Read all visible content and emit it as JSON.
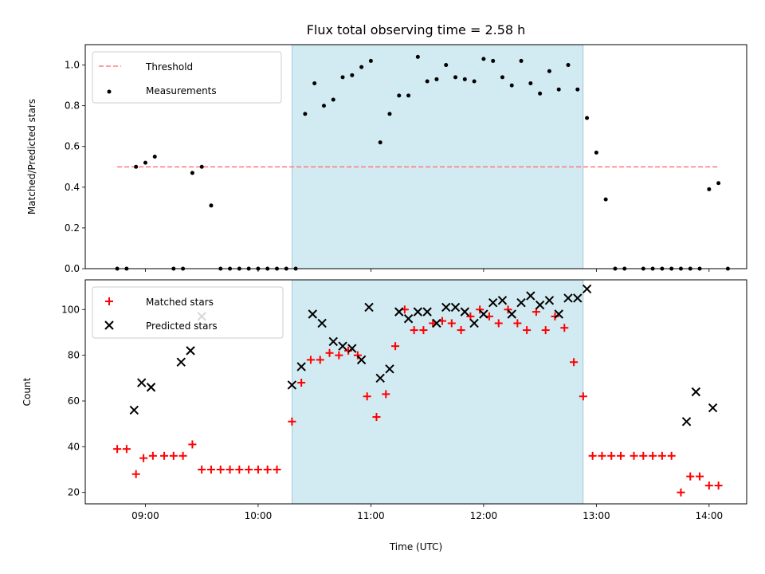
{
  "chart_data": [
    {
      "type": "scatter",
      "title": "Flux total observing time = 2.58 h",
      "xlabel": "",
      "ylabel": "Matched/Predicted stars",
      "ylim": [
        0,
        1.1
      ],
      "yticks": [
        "0.0",
        "0.2",
        "0.4",
        "0.6",
        "0.8",
        "1.0"
      ],
      "x_axis_time_range": [
        "08:28",
        "14:20"
      ],
      "shaded_interval": [
        "10:18",
        "12:53"
      ],
      "shade_color": "#add8e6",
      "legend": {
        "placement": "top-left",
        "entries": [
          "Threshold",
          "Measurements"
        ]
      },
      "threshold": {
        "name": "Threshold",
        "value": 0.5,
        "x_range": [
          "08:45",
          "14:05"
        ],
        "color": "#ff7f7f",
        "style": "dashed"
      },
      "series": [
        {
          "name": "Measurements",
          "color": "#000000",
          "marker": "dot",
          "x": [
            "08:45",
            "08:50",
            "08:55",
            "09:00",
            "09:05",
            "09:15",
            "09:20",
            "09:25",
            "09:30",
            "09:35",
            "09:40",
            "09:45",
            "09:50",
            "09:55",
            "10:00",
            "10:05",
            "10:10",
            "10:15",
            "10:20",
            "10:25",
            "10:30",
            "10:35",
            "10:40",
            "10:45",
            "10:50",
            "10:55",
            "11:00",
            "11:05",
            "11:10",
            "11:15",
            "11:20",
            "11:25",
            "11:30",
            "11:35",
            "11:40",
            "11:45",
            "11:50",
            "11:55",
            "12:00",
            "12:05",
            "12:10",
            "12:15",
            "12:20",
            "12:25",
            "12:30",
            "12:35",
            "12:40",
            "12:45",
            "12:50",
            "12:55",
            "13:00",
            "13:05",
            "13:10",
            "13:15",
            "13:25",
            "13:30",
            "13:35",
            "13:40",
            "13:45",
            "13:50",
            "13:55",
            "14:00",
            "14:05",
            "14:10"
          ],
          "y": [
            0.0,
            0.0,
            0.5,
            0.52,
            0.55,
            0.0,
            0.0,
            0.47,
            0.5,
            0.31,
            0.0,
            0.0,
            0.0,
            0.0,
            0.0,
            0.0,
            0.0,
            0.0,
            0.0,
            0.76,
            0.91,
            0.8,
            0.83,
            0.94,
            0.95,
            0.99,
            1.02,
            0.62,
            0.76,
            0.85,
            0.85,
            1.04,
            0.92,
            0.93,
            1.0,
            0.94,
            0.93,
            0.92,
            1.03,
            1.02,
            0.94,
            0.9,
            1.02,
            0.91,
            0.86,
            0.97,
            0.88,
            1.0,
            0.88,
            0.74,
            0.57,
            0.34,
            0.0,
            0.0,
            0.0,
            0.0,
            0.0,
            0.0,
            0.0,
            0.0,
            0.0,
            0.39,
            0.42,
            0.0
          ]
        }
      ]
    },
    {
      "type": "scatter",
      "title": "",
      "xlabel": "Time (UTC)",
      "ylabel": "Count",
      "ylim": [
        15,
        113
      ],
      "yticks": [
        "20",
        "40",
        "60",
        "80",
        "100"
      ],
      "xticks": [
        "09:00",
        "10:00",
        "11:00",
        "12:00",
        "13:00",
        "14:00"
      ],
      "x_axis_time_range": [
        "08:28",
        "14:20"
      ],
      "shaded_interval": [
        "10:18",
        "12:53"
      ],
      "shade_color": "#add8e6",
      "legend": {
        "placement": "top-left",
        "entries": [
          "Matched stars",
          "Predicted stars"
        ]
      },
      "series": [
        {
          "name": "Matched stars",
          "color": "#ff0000",
          "marker": "plus",
          "x": [
            "08:45",
            "08:50",
            "08:55",
            "08:59",
            "09:04",
            "09:10",
            "09:15",
            "09:20",
            "09:25",
            "09:30",
            "09:35",
            "09:40",
            "09:45",
            "09:50",
            "09:55",
            "10:00",
            "10:05",
            "10:10",
            "10:18",
            "10:23",
            "10:28",
            "10:33",
            "10:38",
            "10:43",
            "10:48",
            "10:53",
            "10:58",
            "11:03",
            "11:08",
            "11:13",
            "11:18",
            "11:23",
            "11:28",
            "11:33",
            "11:38",
            "11:43",
            "11:48",
            "11:53",
            "11:58",
            "12:03",
            "12:08",
            "12:13",
            "12:18",
            "12:23",
            "12:28",
            "12:33",
            "12:38",
            "12:43",
            "12:48",
            "12:53",
            "12:58",
            "13:03",
            "13:08",
            "13:13",
            "13:20",
            "13:25",
            "13:30",
            "13:35",
            "13:40",
            "13:45",
            "13:50",
            "13:55",
            "14:00",
            "14:05"
          ],
          "y": [
            39,
            39,
            28,
            35,
            36,
            36,
            36,
            36,
            41,
            30,
            30,
            30,
            30,
            30,
            30,
            30,
            30,
            30,
            51,
            68,
            78,
            78,
            81,
            80,
            82,
            80,
            62,
            53,
            63,
            84,
            100,
            91,
            91,
            94,
            95,
            94,
            91,
            97,
            100,
            97,
            94,
            100,
            94,
            91,
            99,
            91,
            97,
            92,
            77,
            62,
            36,
            36,
            36,
            36,
            36,
            36,
            36,
            36,
            36,
            20,
            27,
            27,
            23,
            23
          ]
        },
        {
          "name": "Predicted stars",
          "color": "#000000",
          "marker": "x",
          "x": [
            "08:54",
            "08:58",
            "09:03",
            "09:19",
            "09:24",
            "09:30",
            "10:18",
            "10:23",
            "10:29",
            "10:34",
            "10:40",
            "10:45",
            "10:50",
            "10:55",
            "10:59",
            "11:05",
            "11:10",
            "11:15",
            "11:20",
            "11:25",
            "11:30",
            "11:35",
            "11:40",
            "11:45",
            "11:50",
            "11:55",
            "12:00",
            "12:05",
            "12:10",
            "12:15",
            "12:20",
            "12:25",
            "12:30",
            "12:35",
            "12:40",
            "12:45",
            "12:50",
            "12:55",
            "13:48",
            "13:53",
            "14:02"
          ],
          "y": [
            56,
            68,
            66,
            77,
            82,
            97,
            67,
            75,
            98,
            94,
            86,
            84,
            83,
            78,
            101,
            70,
            74,
            99,
            96,
            99,
            99,
            94,
            101,
            101,
            99,
            94,
            98,
            103,
            104,
            98,
            103,
            106,
            102,
            104,
            98,
            105,
            105,
            109,
            51,
            64,
            57
          ]
        }
      ]
    }
  ]
}
